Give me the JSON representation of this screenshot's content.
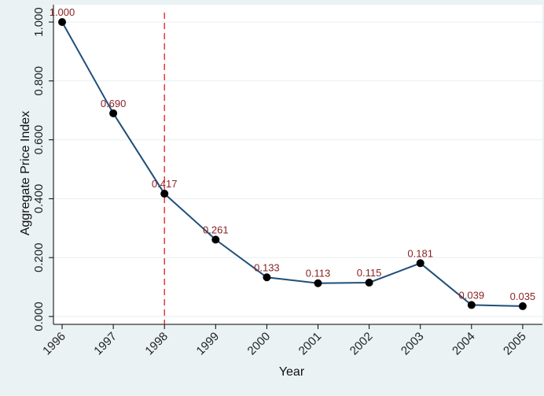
{
  "chart_data": {
    "type": "line",
    "title": "",
    "xlabel": "Year",
    "ylabel": "Aggregate Price Index",
    "x": [
      "1996",
      "1997",
      "1998",
      "1999",
      "2000",
      "2001",
      "2002",
      "2003",
      "2004",
      "2005"
    ],
    "series": [
      {
        "values": [
          1.0,
          0.69,
          0.417,
          0.261,
          0.133,
          0.113,
          0.115,
          0.181,
          0.039,
          0.035
        ],
        "labels": [
          "1.000",
          "0.690",
          "0.417",
          "0.261",
          "0.133",
          "0.113",
          "0.115",
          "0.181",
          "0.039",
          "0.035"
        ],
        "color": "#1f4e79",
        "marker_color": "#000000",
        "label_color": "#8b2323"
      }
    ],
    "ylim": [
      0,
      1
    ],
    "yticks": [
      "0.000",
      "0.200",
      "0.400",
      "0.600",
      "0.800",
      "1.000"
    ],
    "ytick_values": [
      0,
      0.2,
      0.4,
      0.6,
      0.8,
      1.0
    ],
    "vline": {
      "x": "1998",
      "color": "#e31a1c",
      "style": "dashed"
    },
    "grid": "horizontal",
    "legend": "none",
    "colors": {
      "background": "#eaf2f3",
      "plot_background": "#ffffff",
      "grid": "#e7eef0"
    }
  }
}
